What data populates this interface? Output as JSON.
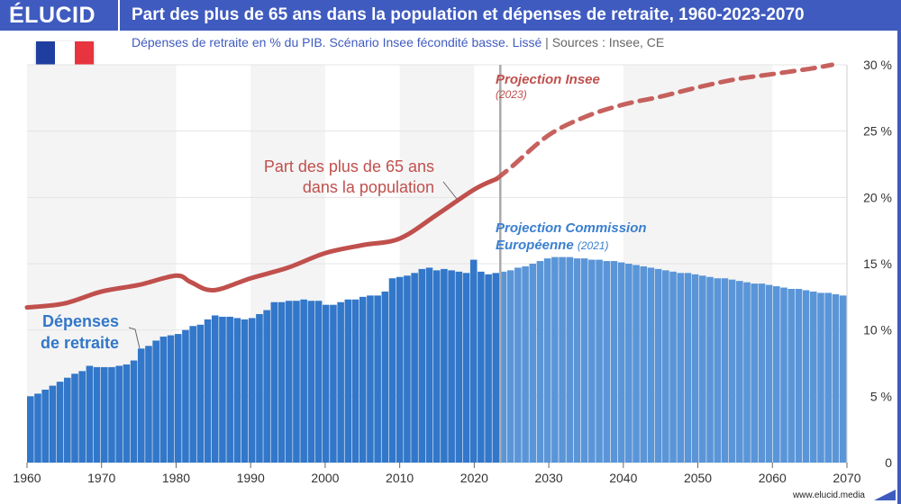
{
  "header": {
    "logo": "ÉLUCID",
    "title": "Part des plus de 65 ans dans la population et dépenses de retraite, 1960-2023-2070",
    "subtitle": "Dépenses de retraite en % du PIB. Scénario Insee fécondité basse. Lissé",
    "separator": "|",
    "sources": "Sources : Insee, CE"
  },
  "flag": {
    "icon": "france-flag-icon",
    "colors": [
      "#1f3fa0",
      "#ffffff",
      "#e8343f"
    ]
  },
  "footer": {
    "url": "www.elucid.media"
  },
  "colors": {
    "brand": "#3f5bbf",
    "bars_hist": "#3277c9",
    "bars_proj": "#5a95d8",
    "line": "#c0504d",
    "divider": "#aaaaaa"
  },
  "chart_data": {
    "type": "bar+line",
    "xlim": [
      1960,
      2070
    ],
    "ylim": [
      0,
      30
    ],
    "x_ticks": [
      "1960",
      "1970",
      "1980",
      "1990",
      "2000",
      "2010",
      "2020",
      "2030",
      "2040",
      "2050",
      "2060",
      "2070"
    ],
    "y_ticks": [
      "0",
      "5 %",
      "10 %",
      "15 %",
      "20 %",
      "25 %",
      "30 %"
    ],
    "y_axis_side": "right",
    "grid": true,
    "projection_start": 2023,
    "annotations": {
      "line_label_1": "Part des plus de 65 ans",
      "line_label_2": "dans la population",
      "bar_label_1": "Dépenses",
      "bar_label_2": "de retraite",
      "proj_insee": "Projection Insee",
      "proj_insee_year": "(2023)",
      "proj_ce_1": "Projection Commission",
      "proj_ce_2": "Européenne",
      "proj_ce_year": "(2021)"
    },
    "bars": {
      "name": "Dépenses de retraite",
      "start_year": 1960,
      "historical": [
        5.0,
        5.2,
        5.5,
        5.8,
        6.1,
        6.4,
        6.7,
        6.9,
        7.3,
        7.2,
        7.2,
        7.2,
        7.3,
        7.4,
        7.7,
        8.6,
        8.8,
        9.2,
        9.5,
        9.6,
        9.7,
        10.0,
        10.3,
        10.4,
        10.8,
        11.1,
        11.0,
        11.0,
        10.9,
        10.8,
        10.9,
        11.2,
        11.5,
        12.1,
        12.1,
        12.2,
        12.2,
        12.3,
        12.2,
        12.2,
        11.9,
        11.9,
        12.1,
        12.3,
        12.3,
        12.5,
        12.6,
        12.6,
        12.9,
        13.9,
        14.0,
        14.1,
        14.3,
        14.6,
        14.7,
        14.5,
        14.6,
        14.5,
        14.4,
        14.3,
        15.3,
        14.4,
        14.2,
        14.3
      ],
      "projection_start_year": 2024,
      "projection": [
        14.4,
        14.5,
        14.7,
        14.8,
        15.0,
        15.2,
        15.4,
        15.5,
        15.5,
        15.5,
        15.4,
        15.4,
        15.3,
        15.3,
        15.2,
        15.2,
        15.1,
        15.0,
        14.9,
        14.8,
        14.7,
        14.6,
        14.5,
        14.4,
        14.3,
        14.3,
        14.2,
        14.1,
        14.0,
        13.9,
        13.9,
        13.8,
        13.7,
        13.6,
        13.5,
        13.5,
        13.4,
        13.3,
        13.2,
        13.1,
        13.1,
        13.0,
        12.9,
        12.8,
        12.8,
        12.7,
        12.6
      ]
    },
    "line": {
      "name": "Part des plus de 65 ans dans la population",
      "historical": [
        [
          1960,
          11.7
        ],
        [
          1965,
          12.0
        ],
        [
          1970,
          12.9
        ],
        [
          1975,
          13.4
        ],
        [
          1980,
          14.1
        ],
        [
          1982,
          13.6
        ],
        [
          1985,
          13.0
        ],
        [
          1990,
          13.9
        ],
        [
          1995,
          14.7
        ],
        [
          2000,
          15.8
        ],
        [
          2005,
          16.4
        ],
        [
          2010,
          16.9
        ],
        [
          2015,
          18.7
        ],
        [
          2020,
          20.6
        ],
        [
          2023,
          21.4
        ]
      ],
      "projection": [
        [
          2023,
          21.4
        ],
        [
          2025,
          22.3
        ],
        [
          2030,
          24.7
        ],
        [
          2035,
          26.1
        ],
        [
          2040,
          27.0
        ],
        [
          2045,
          27.6
        ],
        [
          2050,
          28.3
        ],
        [
          2055,
          28.9
        ],
        [
          2060,
          29.3
        ],
        [
          2065,
          29.7
        ],
        [
          2068,
          30.0
        ]
      ]
    }
  }
}
